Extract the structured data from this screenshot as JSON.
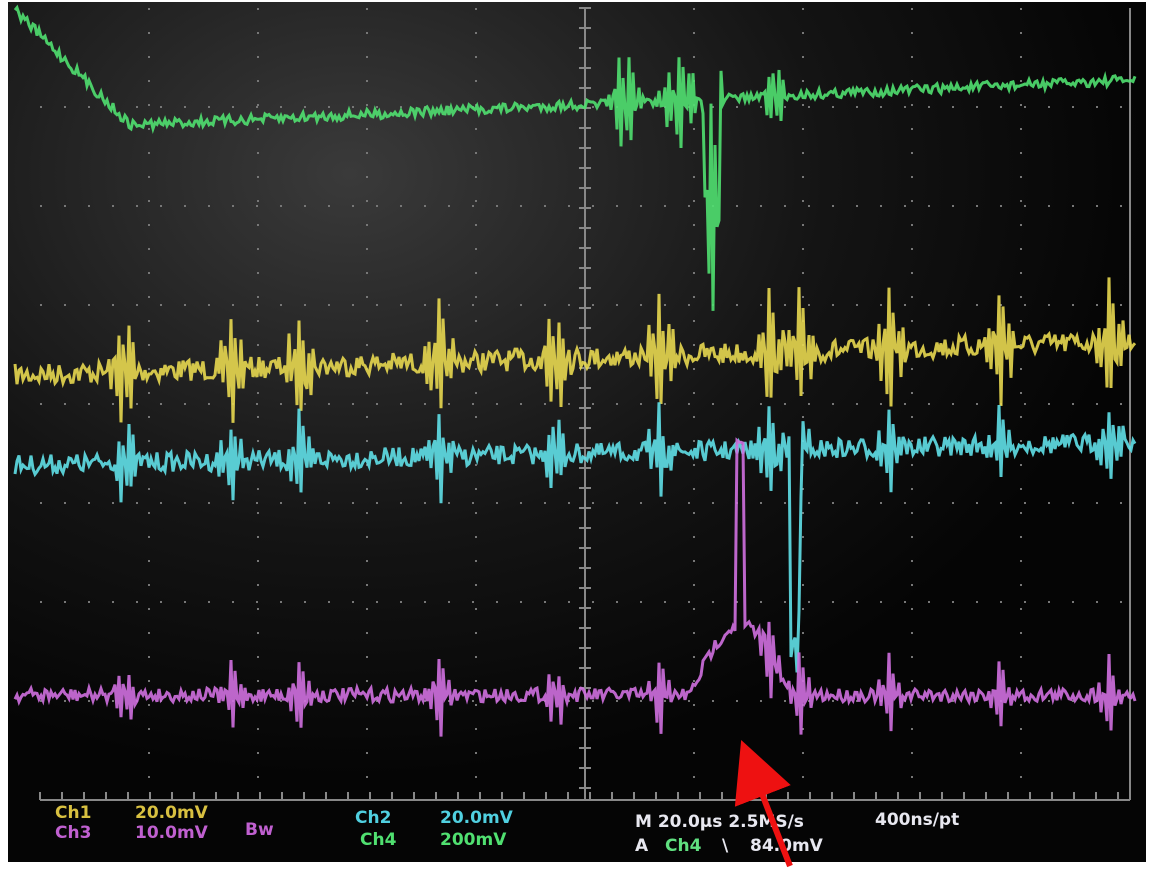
{
  "status_bar": {
    "ch1": {
      "label": "Ch1",
      "scale": "20.0mV"
    },
    "ch3": {
      "label": "Ch3",
      "scale": "10.0mV",
      "bandwidth": "Bw"
    },
    "ch2": {
      "label": "Ch2",
      "scale": "20.0mV"
    },
    "ch4": {
      "label": "Ch4",
      "scale": "200mV"
    },
    "timebase": {
      "horizontal": "M 20.0µs 2.5MS/s",
      "resolution": "400ns/pt"
    },
    "trigger": {
      "mode": "A",
      "source": "Ch4",
      "slope": "\\",
      "level": "84.0mV"
    }
  }
}
